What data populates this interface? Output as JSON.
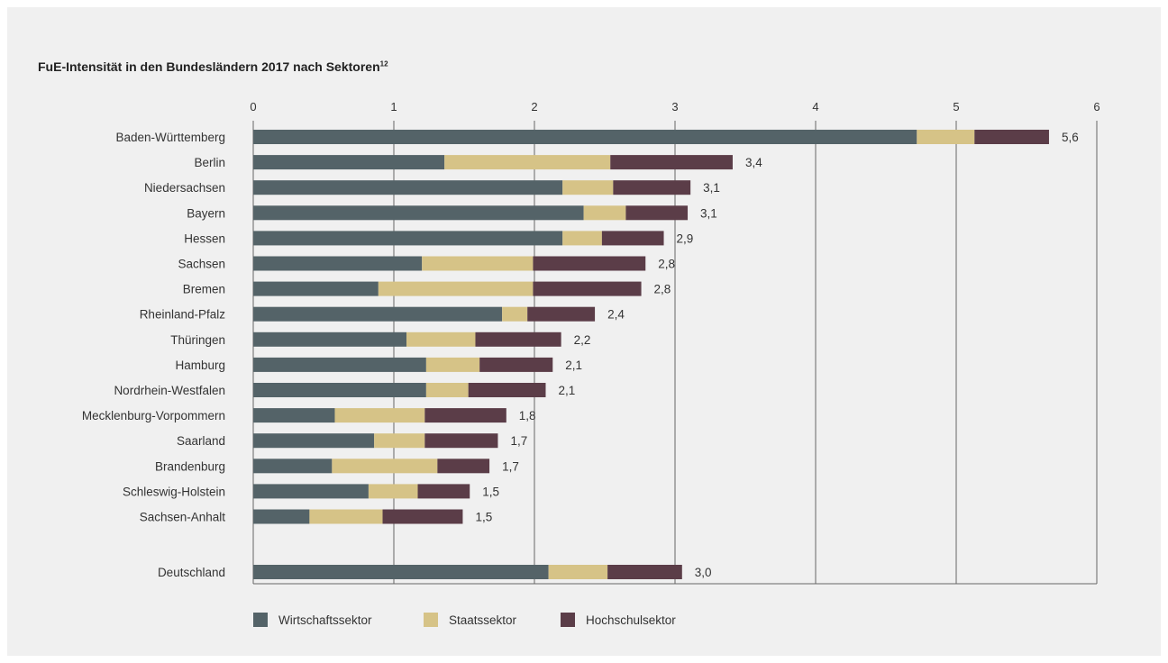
{
  "chart_data": {
    "type": "bar",
    "orientation": "horizontal",
    "stacked": true,
    "title": "FuE-Intensität in den Bundesländern 2017 nach Sektoren",
    "title_footnote": "12",
    "xlim": [
      0,
      6
    ],
    "xticks": [
      "0",
      "1",
      "2",
      "3",
      "4",
      "5",
      "6"
    ],
    "grid": true,
    "legend_position": "bottom-left",
    "categories": [
      "Baden-Württemberg",
      "Berlin",
      "Niedersachsen",
      "Bayern",
      "Hessen",
      "Sachsen",
      "Bremen",
      "Rheinland-Pfalz",
      "Thüringen",
      "Hamburg",
      "Nordrhein-Westfalen",
      "Mecklenburg-Vorpommern",
      "Saarland",
      "Brandenburg",
      "Schleswig-Holstein",
      "Sachsen-Anhalt",
      "Deutschland"
    ],
    "totals": [
      "5,6",
      "3,4",
      "3,1",
      "3,1",
      "2,9",
      "2,8",
      "2,8",
      "2,4",
      "2,2",
      "2,1",
      "2,1",
      "1,8",
      "1,7",
      "1,7",
      "1,5",
      "1,5",
      "3,0"
    ],
    "series": [
      {
        "name": "Wirtschaftssektor",
        "color": "#546368",
        "values": [
          4.72,
          1.36,
          2.2,
          2.35,
          2.2,
          1.2,
          0.89,
          1.77,
          1.09,
          1.23,
          1.23,
          0.58,
          0.86,
          0.56,
          0.82,
          0.4,
          2.1
        ]
      },
      {
        "name": "Staatssektor",
        "color": "#d6c387",
        "values": [
          0.41,
          1.18,
          0.36,
          0.3,
          0.28,
          0.79,
          1.1,
          0.18,
          0.49,
          0.38,
          0.3,
          0.64,
          0.36,
          0.75,
          0.35,
          0.52,
          0.42
        ]
      },
      {
        "name": "Hochschulsektor",
        "color": "#5b3d48",
        "values": [
          0.53,
          0.87,
          0.55,
          0.44,
          0.44,
          0.8,
          0.77,
          0.48,
          0.61,
          0.52,
          0.55,
          0.58,
          0.52,
          0.37,
          0.37,
          0.57,
          0.53
        ]
      }
    ]
  }
}
